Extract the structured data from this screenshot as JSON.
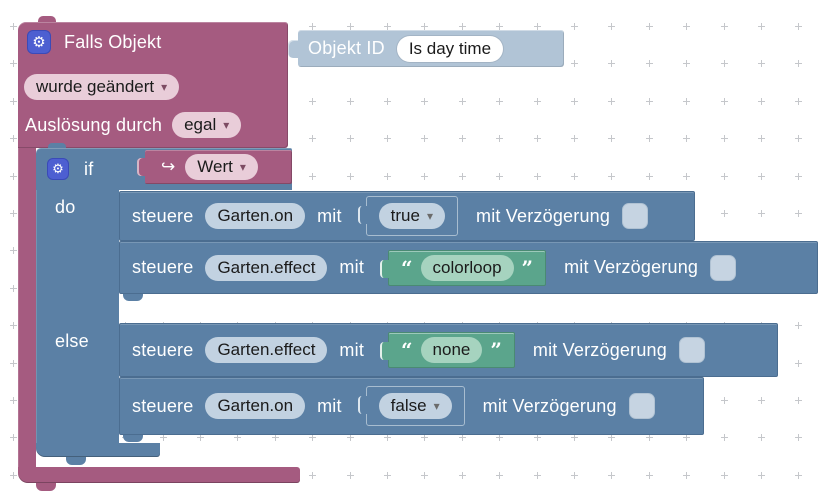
{
  "ui": {
    "gear_glyph": "⚙",
    "dropdown_arrow": "▾",
    "quote_open": "“",
    "quote_close": "”"
  },
  "colors": {
    "trigger_block": "#a55b80",
    "logic_block": "#5b80a5",
    "string_block": "#5ba58c",
    "object_id_block": "#b1c4d6",
    "field_pink": "#e9cdd9",
    "field_steel": "#c2d2e1",
    "field_green": "#a6d3bf",
    "field_white": "#ffffff",
    "checkbox": "#c6d4e2",
    "gear_button": "#4d5fd1",
    "grid_dot": "#c5c7cb"
  },
  "trigger_block": {
    "title": "Falls Objekt",
    "change_dropdown": "wurde geändert",
    "trigger_by_label": "Auslösung durch",
    "trigger_by_dropdown": "egal"
  },
  "object_id_block": {
    "label": "Objekt ID",
    "value": "Is day time"
  },
  "if_block": {
    "if_label": "if",
    "condition_arrow": "↪",
    "condition_dropdown": "Wert",
    "do_label": "do",
    "else_label": "else"
  },
  "do_rows": [
    {
      "verb": "steuere",
      "oid": "Garten.on",
      "mit": "mit",
      "value": "true",
      "delay_label": "mit Verzögerung"
    },
    {
      "verb": "steuere",
      "oid": "Garten.effect",
      "mit": "mit",
      "value": "colorloop",
      "delay_label": "mit Verzögerung"
    }
  ],
  "else_rows": [
    {
      "verb": "steuere",
      "oid": "Garten.effect",
      "mit": "mit",
      "value": "none",
      "delay_label": "mit Verzögerung"
    },
    {
      "verb": "steuere",
      "oid": "Garten.on",
      "mit": "mit",
      "value": "false",
      "delay_label": "mit Verzögerung"
    }
  ]
}
